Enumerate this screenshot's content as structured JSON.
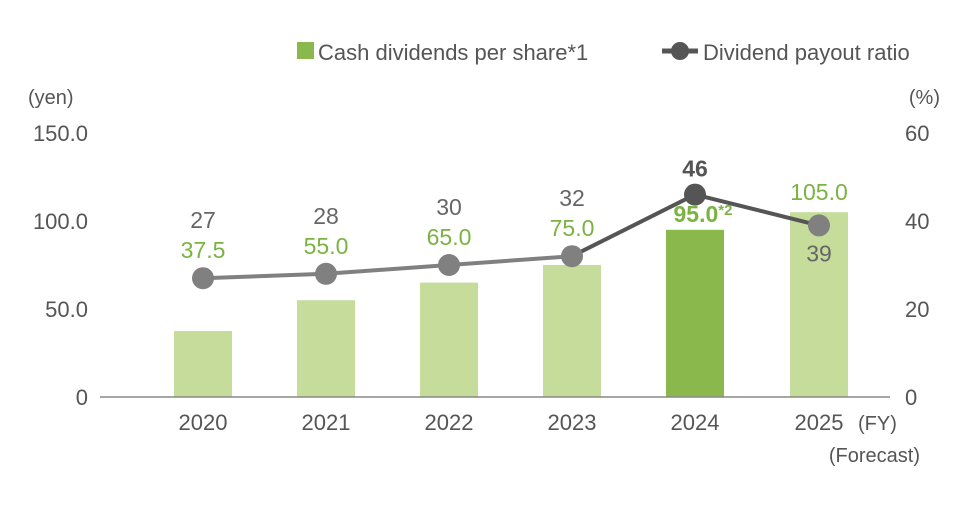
{
  "chart_data": {
    "type": "bar+line",
    "categories": [
      "2020",
      "2021",
      "2022",
      "2023",
      "2024",
      "2025"
    ],
    "x_unit": "(FY)",
    "forecast_note": "(Forecast)",
    "left_axis": {
      "unit": "(yen)",
      "range": [
        0,
        150
      ],
      "ticks": [
        "0",
        "50.0",
        "100.0",
        "150.0"
      ]
    },
    "right_axis": {
      "unit": "(%)",
      "range": [
        0,
        60
      ],
      "ticks": [
        "0",
        "20",
        "40",
        "60"
      ]
    },
    "legend": {
      "placement": "top-right"
    },
    "series": [
      {
        "name": "Cash dividends per share*1",
        "type": "bar",
        "axis": "left",
        "values": [
          37.5,
          55.0,
          65.0,
          75.0,
          95.0,
          105.0
        ],
        "labels": [
          "37.5",
          "55.0",
          "65.0",
          "75.0",
          "95.0",
          "105.0"
        ],
        "label_notes": [
          "",
          "",
          "",
          "",
          "*2",
          ""
        ],
        "color": "#c5dc9b",
        "highlight_color": "#8ab84d",
        "label_color": "#7ab342"
      },
      {
        "name": "Dividend payout ratio",
        "type": "line",
        "axis": "right",
        "values": [
          27,
          28,
          30,
          32,
          46,
          39
        ],
        "labels": [
          "27",
          "28",
          "30",
          "32",
          "46",
          "39"
        ],
        "color": "#808080",
        "highlight_color": "#555555"
      }
    ],
    "highlight_category": "2024"
  }
}
